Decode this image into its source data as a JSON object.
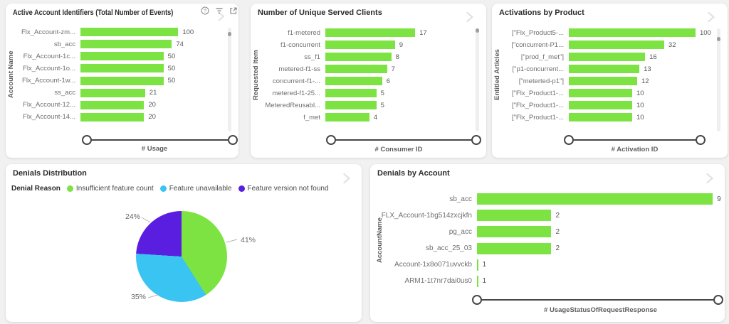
{
  "page": {
    "background_color": "#f0f1f0",
    "card_background": "#ffffff"
  },
  "colors": {
    "bar_green": "#7CE342",
    "pie_blue": "#3AC4F2",
    "pie_purple": "#5A1EE1",
    "slider": "#474747",
    "chevron": "#e2e2e2"
  },
  "icons": {
    "help": "help-icon (circled question mark)",
    "filter": "filter-icon (funnel lines)",
    "popout": "popout-icon (focus mode square with arrow)",
    "chevron": "chevron-right-icon"
  },
  "chart_data": [
    {
      "type": "bar",
      "orientation": "horizontal",
      "title": "Active Account Identifiers (Total Number of Events)",
      "ylabel": "Account Name",
      "xlabel": "# Usage",
      "scale": "log",
      "axis_range": [
        1,
        1000
      ],
      "categories": [
        "Flx_Account-zm...",
        "sb_acc",
        "Flx_Account-1c...",
        "Flx_Account-1o...",
        "Flx_Account-1w...",
        "ss_acc",
        "Flx_Account-12...",
        "Flx_Account-14..."
      ],
      "values": [
        100,
        74,
        50,
        50,
        50,
        21,
        20,
        20
      ],
      "header_icons": [
        "help-icon",
        "filter-icon",
        "popout-icon",
        "chevron-right-icon"
      ]
    },
    {
      "type": "bar",
      "orientation": "horizontal",
      "title": "Number of Unique Served Clients",
      "ylabel": "Requested Item",
      "xlabel": "# Consumer ID",
      "scale": "log",
      "axis_range": [
        1,
        100
      ],
      "categories": [
        "f1-metered",
        "f1-concurrent",
        "ss_f1",
        "metered-f1-ss",
        "concurrent-f1-...",
        "metered-f1-25...",
        "MeteredReusabl...",
        "f_met"
      ],
      "values": [
        17,
        9,
        8,
        7,
        6,
        5,
        5,
        4
      ],
      "header_icons": [
        "chevron-right-icon"
      ]
    },
    {
      "type": "bar",
      "orientation": "horizontal",
      "title": "Activations by Product",
      "ylabel": "Entitled Articles",
      "xlabel": "# Activation ID",
      "scale": "log",
      "axis_range": [
        1,
        120
      ],
      "categories": [
        "[\"Flx_Product5-...",
        "[\"concurrent-P1...",
        "[\"prod_f_met\"]",
        "[\"p1-concurrent...",
        "[\"meterted-p1\"]",
        "[\"Flx_Product1-...",
        "[\"Flx_Product1-...",
        "[\"Flx_Product1-..."
      ],
      "values": [
        100,
        32,
        16,
        13,
        12,
        10,
        10,
        10
      ],
      "header_icons": [
        "chevron-right-icon"
      ]
    },
    {
      "type": "pie",
      "title": "Denials Distribution",
      "legend_title": "Denial Reason",
      "legend_position": "top",
      "slices": [
        {
          "label": "Insufficient feature count",
          "pct": 41,
          "pct_label": "41%",
          "color": "#7CE342"
        },
        {
          "label": "Feature unavailable",
          "pct": 35,
          "pct_label": "35%",
          "color": "#3AC4F2"
        },
        {
          "label": "Feature version not found",
          "pct": 24,
          "pct_label": "24%",
          "color": "#5A1EE1"
        }
      ],
      "header_icons": [
        "chevron-right-icon"
      ]
    },
    {
      "type": "bar",
      "orientation": "horizontal",
      "title": "Denials by Account",
      "ylabel": "AccountName",
      "xlabel": "# UsageStatusOfRequestResponse",
      "scale": "log",
      "axis_range": [
        1,
        10
      ],
      "categories": [
        "sb_acc",
        "FLX_Account-1bg514zxcjkfn",
        "pg_acc",
        "sb_acc_25_03",
        "Account-1x8o071uvvckb",
        "ARM1-1t7nr7dai0us0"
      ],
      "values": [
        9,
        2,
        2,
        2,
        1,
        1
      ],
      "header_icons": [
        "chevron-right-icon"
      ]
    }
  ]
}
